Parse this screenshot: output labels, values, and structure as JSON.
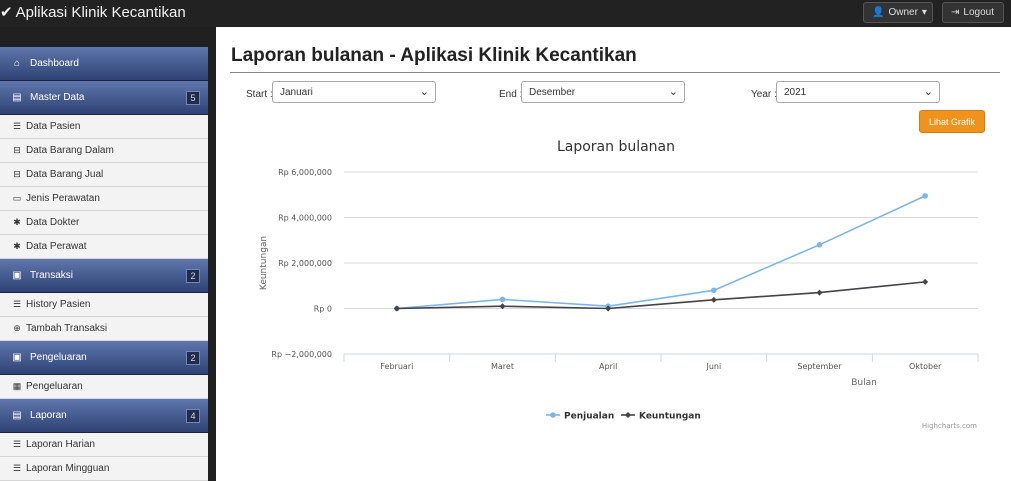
{
  "app": {
    "title": "Aplikasi Klinik Kecantikan"
  },
  "topbar": {
    "owner_label": "Owner",
    "logout_label": "Logout"
  },
  "sidebar": {
    "dashboard": "Dashboard",
    "master": {
      "label": "Master Data",
      "badge": "5",
      "items": [
        "Data Pasien",
        "Data Barang Dalam",
        "Data Barang Jual",
        "Jenis Perawatan",
        "Data Dokter",
        "Data Perawat"
      ]
    },
    "transaksi": {
      "label": "Transaksi",
      "badge": "2",
      "items": [
        "History Pasien",
        "Tambah Transaksi"
      ]
    },
    "pengeluaran": {
      "label": "Pengeluaran",
      "badge": "2",
      "items": [
        "Pengeluaran"
      ]
    },
    "laporan": {
      "label": "Laporan",
      "badge": "4",
      "items": [
        "Laporan Harian",
        "Laporan Mingguan"
      ]
    }
  },
  "main": {
    "title": "Laporan bulanan - Aplikasi Klinik Kecantikan",
    "start_label": "Start :",
    "start_value": "Januari",
    "end_label": "End :",
    "end_value": "Desember",
    "year_label": "Year :",
    "year_value": "2021",
    "button_label": "Lihat Grafik"
  },
  "chart_data": {
    "type": "line",
    "title": "Laporan bulanan",
    "xlabel": "Bulan",
    "ylabel": "Keuntungan",
    "categories": [
      "Februari",
      "Maret",
      "April",
      "Juni",
      "September",
      "Oktober"
    ],
    "ylim": [
      -2000000,
      6000000
    ],
    "yticks": [
      6000000,
      4000000,
      2000000,
      0,
      -2000000
    ],
    "ytick_labels": [
      "Rp 6,000,000",
      "Rp 4,000,000",
      "Rp 2,000,000",
      "Rp 0",
      "Rp −2,000,000"
    ],
    "series": [
      {
        "name": "Penjualan",
        "color": "#7cb5ec",
        "values": [
          0,
          400000,
          100000,
          800000,
          2800000,
          4950000
        ]
      },
      {
        "name": "Keuntungan",
        "color": "#434348",
        "values": [
          0,
          100000,
          0,
          380000,
          700000,
          1170000
        ]
      }
    ],
    "credits": "Highcharts.com",
    "grid": true,
    "legend_position": "bottom"
  }
}
